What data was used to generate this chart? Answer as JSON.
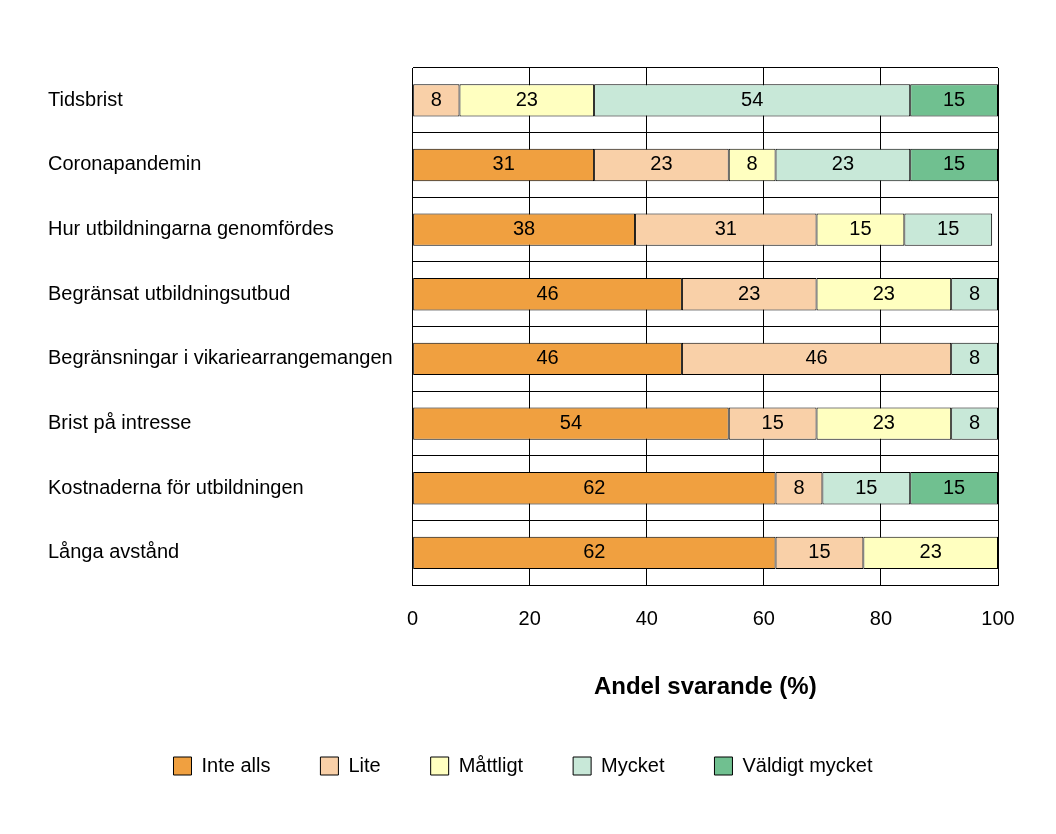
{
  "chart_data": {
    "type": "bar",
    "orientation": "horizontal",
    "stacked": true,
    "xlabel": "Andel svarande (%)",
    "categories": [
      "Tidsbrist",
      "Coronapandemin",
      "Hur utbildningarna genomfördes",
      "Begränsat utbildningsutbud",
      "Begränsningar i vikariearrangemangen",
      "Brist på intresse",
      "Kostnaderna för utbildningen",
      "Långa avstånd"
    ],
    "series": [
      {
        "name": "Inte alls",
        "color": "#f0a040",
        "values": [
          null,
          31,
          38,
          46,
          46,
          54,
          62,
          62
        ]
      },
      {
        "name": "Lite",
        "color": "#f9d0a8",
        "values": [
          8,
          23,
          31,
          23,
          46,
          15,
          8,
          15
        ]
      },
      {
        "name": "Måttligt",
        "color": "#ffffc0",
        "values": [
          23,
          8,
          15,
          23,
          null,
          23,
          null,
          23
        ]
      },
      {
        "name": "Mycket",
        "color": "#c8e8d8",
        "values": [
          54,
          23,
          15,
          8,
          8,
          8,
          15,
          null
        ]
      },
      {
        "name": "Väldigt mycket",
        "color": "#70c090",
        "values": [
          15,
          15,
          null,
          null,
          null,
          null,
          15,
          null
        ]
      }
    ],
    "xlim": [
      0,
      100
    ],
    "xticks": [
      0,
      20,
      40,
      60,
      80,
      100
    ],
    "grid": true,
    "legend": "bottom",
    "data_labels": true
  }
}
